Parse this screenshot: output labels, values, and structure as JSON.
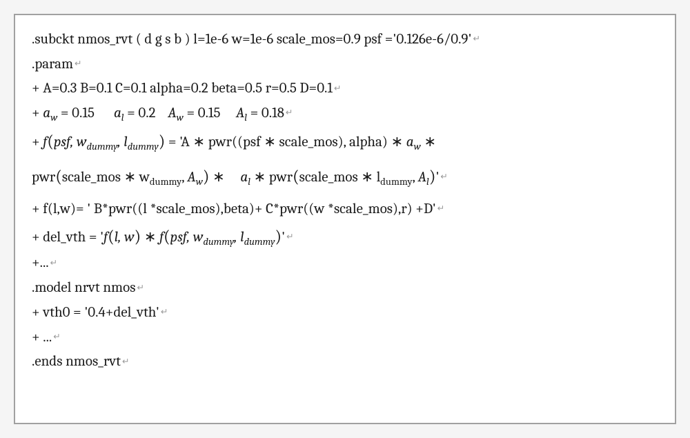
{
  "line1": {
    "text": ".subckt nmos_rvt ( d g s b ) l=1e-6 w=1e-6 scale_mos=0.9 psf ='0.126e-6/0.9'"
  },
  "line2": {
    "text": ".param"
  },
  "line3": {
    "text": "+ A=0.3 B=0.1 C=0.1 alpha=0.2 beta=0.5 r=0.5 D=0.1"
  },
  "line4": {
    "prefix": "+ ",
    "aw_var": "a",
    "aw_sub": "w",
    "aw_val": " = 0.15",
    "al_var": "a",
    "al_sub": "l",
    "al_val": " = 0.2",
    "Aw_var": "A",
    "Aw_sub": "w",
    "Aw_val": " = 0.15 ",
    "Al_var": "A",
    "Al_sub": "l",
    "Al_val": " = 0.18"
  },
  "line5": {
    "prefix": "+ ",
    "f": "f",
    "args_head": "psf, w",
    "arg1_sub": "dummy",
    "comma": ", l",
    "arg2_sub": "dummy",
    "eq": " = 'A ∗ pwr((psf  ∗ scale_mos), alpha) ∗ ",
    "aw_var": "a",
    "aw_sub": "w",
    "tail": " ∗"
  },
  "line6": {
    "pwr1": "pwr",
    "arg1_head": "scale_mos ∗ w",
    "arg1_sub": "dummy",
    "comma1": ", ",
    "Aw_var": "A",
    "Aw_sub": "w",
    "mid": " ∗ ",
    "al_var": "a",
    "al_sub": "l",
    "mid2": " ∗ pwr",
    "arg2_head": "scale_mos ∗ l",
    "arg2_sub": "dummy",
    "comma2": ", ",
    "Al_var": "A",
    "Al_sub": "l",
    "tail": "'"
  },
  "line7": {
    "text": "+ f(l,w)= ' B*pwr((l *scale_mos),beta)+ C*pwr((w *scale_mos),r) +D'"
  },
  "line8": {
    "prefix": "+ del_vth =   '",
    "f1": "f",
    "args1": "l, w",
    "mid": " ∗ ",
    "f2": "f",
    "args2_head": "psf, w",
    "arg1_sub": "dummy",
    "comma": ", l",
    "arg2_sub": "dummy",
    "tail": "'"
  },
  "line9": {
    "text": "+..."
  },
  "line10": {
    "text": ".model nrvt nmos"
  },
  "line11": {
    "text": "+ vth0 = '0.4+del_vth'"
  },
  "line12": {
    "text": "+ ..."
  },
  "line13": {
    "text": ".ends nmos_rvt"
  },
  "return_symbol": "↵"
}
